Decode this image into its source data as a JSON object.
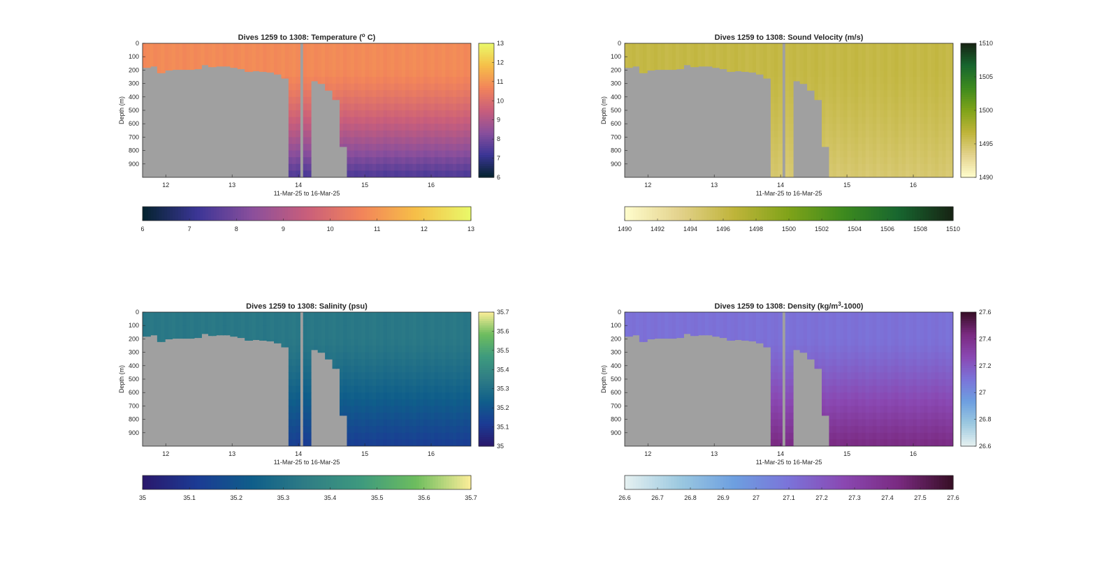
{
  "figure": {
    "chart_data": [
      {
        "type": "heatmap",
        "title": "Dives 1259 to 1308: Temperature (",
        "title_sup": "o",
        "title_tail": " C)",
        "xlabel": "11-Mar-25 to 16-Mar-25",
        "ylabel": "Depth (m)",
        "xlim": [
          11.65,
          16.6
        ],
        "ylim": [
          0,
          1000
        ],
        "xticks": [
          "12",
          "13",
          "14",
          "15",
          "16"
        ],
        "yticks": [
          "0",
          "100",
          "200",
          "300",
          "400",
          "500",
          "600",
          "700",
          "800",
          "900"
        ],
        "colormap": "thermal",
        "colors": [
          "#04232e",
          "#3b3596",
          "#8a4f9c",
          "#c95e7b",
          "#f2845a",
          "#f6bf48",
          "#e9f96a"
        ],
        "clim": [
          6,
          13
        ],
        "cbar_ticks": [
          "6",
          "7",
          "8",
          "9",
          "10",
          "11",
          "12",
          "13"
        ],
        "hcbar_ticks": [
          "6",
          "7",
          "8",
          "9",
          "10",
          "11",
          "12",
          "13"
        ],
        "surface_value": 10.8,
        "deep_value": 7.5,
        "deep_fill": "#3a3a9a"
      },
      {
        "type": "heatmap",
        "title": "Dives 1259 to 1308: Sound Velocity (m/s)",
        "xlabel": "11-Mar-25 to 16-Mar-25",
        "ylabel": "Depth (m)",
        "xlim": [
          11.65,
          16.6
        ],
        "ylim": [
          0,
          1000
        ],
        "xticks": [
          "12",
          "13",
          "14",
          "15",
          "16"
        ],
        "yticks": [
          "0",
          "100",
          "200",
          "300",
          "400",
          "500",
          "600",
          "700",
          "800",
          "900"
        ],
        "colormap": "speed",
        "colors": [
          "#fffdcd",
          "#e3d28c",
          "#bfb43a",
          "#7fa319",
          "#3d8a1e",
          "#17662f",
          "#172313"
        ],
        "clim": [
          1490,
          1510
        ],
        "cbar_ticks": [
          "1490",
          "1495",
          "1500",
          "1505",
          "1510"
        ],
        "hcbar_ticks": [
          "1490",
          "1492",
          "1494",
          "1496",
          "1498",
          "1500",
          "1502",
          "1504",
          "1506",
          "1508",
          "1510"
        ],
        "surface_value": 1496.2,
        "deep_value": 1494.5,
        "deep_fill": "#e4dc9c"
      },
      {
        "type": "heatmap",
        "title": "Dives 1259 to 1308: Salinity (psu)",
        "xlabel": "11-Mar-25 to 16-Mar-25",
        "ylabel": "Depth (m)",
        "xlim": [
          11.65,
          16.6
        ],
        "ylim": [
          0,
          1000
        ],
        "xticks": [
          "12",
          "13",
          "14",
          "15",
          "16"
        ],
        "yticks": [
          "0",
          "100",
          "200",
          "300",
          "400",
          "500",
          "600",
          "700",
          "800",
          "900"
        ],
        "colormap": "haline",
        "colors": [
          "#2a186c",
          "#1b3b94",
          "#0f5e8a",
          "#2f7d85",
          "#3e9a7e",
          "#6dbd5e",
          "#fdee99"
        ],
        "clim": [
          35,
          35.7
        ],
        "cbar_ticks": [
          "35",
          "35.1",
          "35.2",
          "35.3",
          "35.4",
          "35.5",
          "35.6",
          "35.7"
        ],
        "hcbar_ticks": [
          "35",
          "35.1",
          "35.2",
          "35.3",
          "35.4",
          "35.5",
          "35.6",
          "35.7"
        ],
        "surface_value": 35.33,
        "deep_value": 35.13,
        "deep_fill": "#2d2f8f"
      },
      {
        "type": "heatmap",
        "title": "Dives 1259 to 1308: Density (kg/m",
        "title_sup": "3",
        "title_tail": "-1000)",
        "xlabel": "11-Mar-25 to 16-Mar-25",
        "ylabel": "Depth (m)",
        "xlim": [
          11.65,
          16.6
        ],
        "ylim": [
          0,
          1000
        ],
        "xticks": [
          "12",
          "13",
          "14",
          "15",
          "16"
        ],
        "yticks": [
          "0",
          "100",
          "200",
          "300",
          "400",
          "500",
          "600",
          "700",
          "800",
          "900"
        ],
        "colormap": "dense",
        "colors": [
          "#e6f1f1",
          "#9cc9e0",
          "#6d9fe0",
          "#7b73d9",
          "#8a48b2",
          "#7a2a81",
          "#360e24"
        ],
        "clim": [
          26.6,
          27.6
        ],
        "cbar_ticks": [
          "26.6",
          "26.8",
          "27",
          "27.2",
          "27.4",
          "27.6"
        ],
        "hcbar_ticks": [
          "26.6",
          "26.7",
          "26.8",
          "26.9",
          "27",
          "27.1",
          "27.2",
          "27.3",
          "27.4",
          "27.5",
          "27.6"
        ],
        "surface_value": 27.11,
        "deep_value": 27.42,
        "deep_fill": "#5a1550"
      }
    ],
    "ocean_data": {
      "bathymetry": {
        "x": [
          11.65,
          11.76,
          11.87,
          11.98,
          12.09,
          12.2,
          12.31,
          12.42,
          12.53,
          12.64,
          12.75,
          12.86,
          12.97,
          13.08,
          13.19,
          13.3,
          13.41,
          13.52,
          13.63,
          13.74,
          13.85,
          13.96,
          14.07,
          14.18,
          14.29,
          14.4,
          14.51,
          14.62,
          14.73,
          14.84,
          14.95,
          15.06,
          15.17,
          15.28,
          15.39,
          15.5,
          15.61,
          15.72,
          15.83,
          15.94,
          16.05,
          16.16,
          16.27,
          16.38,
          16.49
        ],
        "bottom_depth": [
          180,
          170,
          220,
          200,
          195,
          195,
          195,
          190,
          160,
          175,
          170,
          170,
          180,
          190,
          210,
          205,
          210,
          215,
          230,
          260,
          1000,
          1000,
          1000,
          280,
          300,
          350,
          420,
          770,
          1000,
          1000,
          1000,
          1000,
          1000,
          1000,
          1000,
          1000,
          1000,
          1000,
          1000,
          1000,
          1000,
          1000,
          1000,
          1000,
          1000
        ]
      },
      "gap": [
        14.0,
        14.08
      ]
    }
  }
}
